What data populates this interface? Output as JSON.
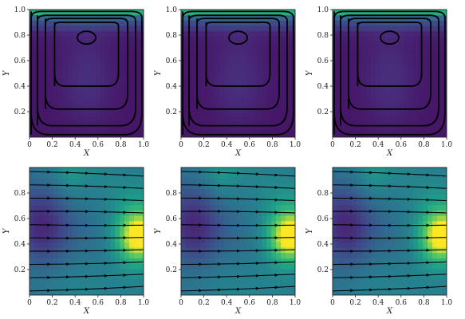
{
  "colors": {
    "dark_purple": "#46337e",
    "purple": "#58508c",
    "blue": "#3e6f8b",
    "teal": "#2c8c8b",
    "green": "#3fae73",
    "light_green": "#9bd53e",
    "yellow": "#fde725",
    "axis": "#222222",
    "stroke": "#000000"
  },
  "chart_data": [
    {
      "type": "contour",
      "panel": "top-left",
      "xlabel": "X",
      "ylabel": "Y",
      "xlim": [
        0,
        1
      ],
      "ylim": [
        0,
        1
      ],
      "xticks": [
        "0",
        "0.2",
        "0.4",
        "0.6",
        "0.8",
        "1.0"
      ],
      "yticks": [
        "0.2",
        "0.4",
        "0.6",
        "0.8",
        "1.0"
      ],
      "vortex_center": [
        0.5,
        0.77
      ],
      "streamline_levels": 5,
      "colormap": "viridis"
    },
    {
      "type": "contour",
      "panel": "top-center",
      "xlabel": "X",
      "ylabel": "Y",
      "xlim": [
        0,
        1
      ],
      "ylim": [
        0,
        1
      ],
      "xticks": [
        "0",
        "0.2",
        "0.4",
        "0.6",
        "0.8",
        "1.0"
      ],
      "yticks": [
        "0.2",
        "0.4",
        "0.6",
        "0.8",
        "1.0"
      ],
      "vortex_center": [
        0.5,
        0.77
      ],
      "streamline_levels": 5,
      "colormap": "viridis"
    },
    {
      "type": "contour",
      "panel": "top-right",
      "xlabel": "X",
      "ylabel": "Y",
      "xlim": [
        0,
        1
      ],
      "ylim": [
        0,
        1
      ],
      "xticks": [
        "0",
        "0.2",
        "0.4",
        "0.6",
        "0.8",
        "1.0"
      ],
      "yticks": [
        "0.2",
        "0.4",
        "0.6",
        "0.8",
        "1.0"
      ],
      "vortex_center": [
        0.5,
        0.77
      ],
      "streamline_levels": 5,
      "colormap": "viridis"
    },
    {
      "type": "contour",
      "panel": "bottom-left",
      "xlabel": "X",
      "ylabel": "Y",
      "xlim": [
        0,
        1
      ],
      "ylim": [
        0,
        1
      ],
      "xticks": [
        "0",
        "0.2",
        "0.4",
        "0.6",
        "0.8",
        "1.0"
      ],
      "yticks": [
        "0.2",
        "0.4",
        "0.6",
        "0.8"
      ],
      "streamline_y": [
        0.05,
        0.15,
        0.25,
        0.35,
        0.45,
        0.55,
        0.65,
        0.75,
        0.85,
        0.95
      ],
      "low_center": [
        0.1,
        0.5
      ],
      "high_center": [
        0.95,
        0.45
      ],
      "colormap": "viridis"
    },
    {
      "type": "contour",
      "panel": "bottom-center",
      "xlabel": "X",
      "ylabel": "Y",
      "xlim": [
        0,
        1
      ],
      "ylim": [
        0,
        1
      ],
      "xticks": [
        "0",
        "0.2",
        "0.4",
        "0.6",
        "0.8",
        "1.0"
      ],
      "yticks": [
        "0.2",
        "0.4",
        "0.6",
        "0.8"
      ],
      "streamline_y": [
        0.05,
        0.15,
        0.25,
        0.35,
        0.45,
        0.55,
        0.65,
        0.75,
        0.85,
        0.95
      ],
      "low_center": [
        0.1,
        0.5
      ],
      "high_center": [
        0.95,
        0.45
      ],
      "colormap": "viridis"
    },
    {
      "type": "contour",
      "panel": "bottom-right",
      "xlabel": "X",
      "ylabel": "Y",
      "xlim": [
        0,
        1
      ],
      "ylim": [
        0,
        1
      ],
      "xticks": [
        "0",
        "0.2",
        "0.4",
        "0.6",
        "0.8",
        "1.0"
      ],
      "yticks": [
        "0.2",
        "0.4",
        "0.6",
        "0.8"
      ],
      "streamline_y": [
        0.05,
        0.15,
        0.25,
        0.35,
        0.45,
        0.55,
        0.65,
        0.75,
        0.85,
        0.95
      ],
      "low_center": [
        0.1,
        0.5
      ],
      "high_center": [
        0.95,
        0.45
      ],
      "colormap": "viridis"
    }
  ]
}
